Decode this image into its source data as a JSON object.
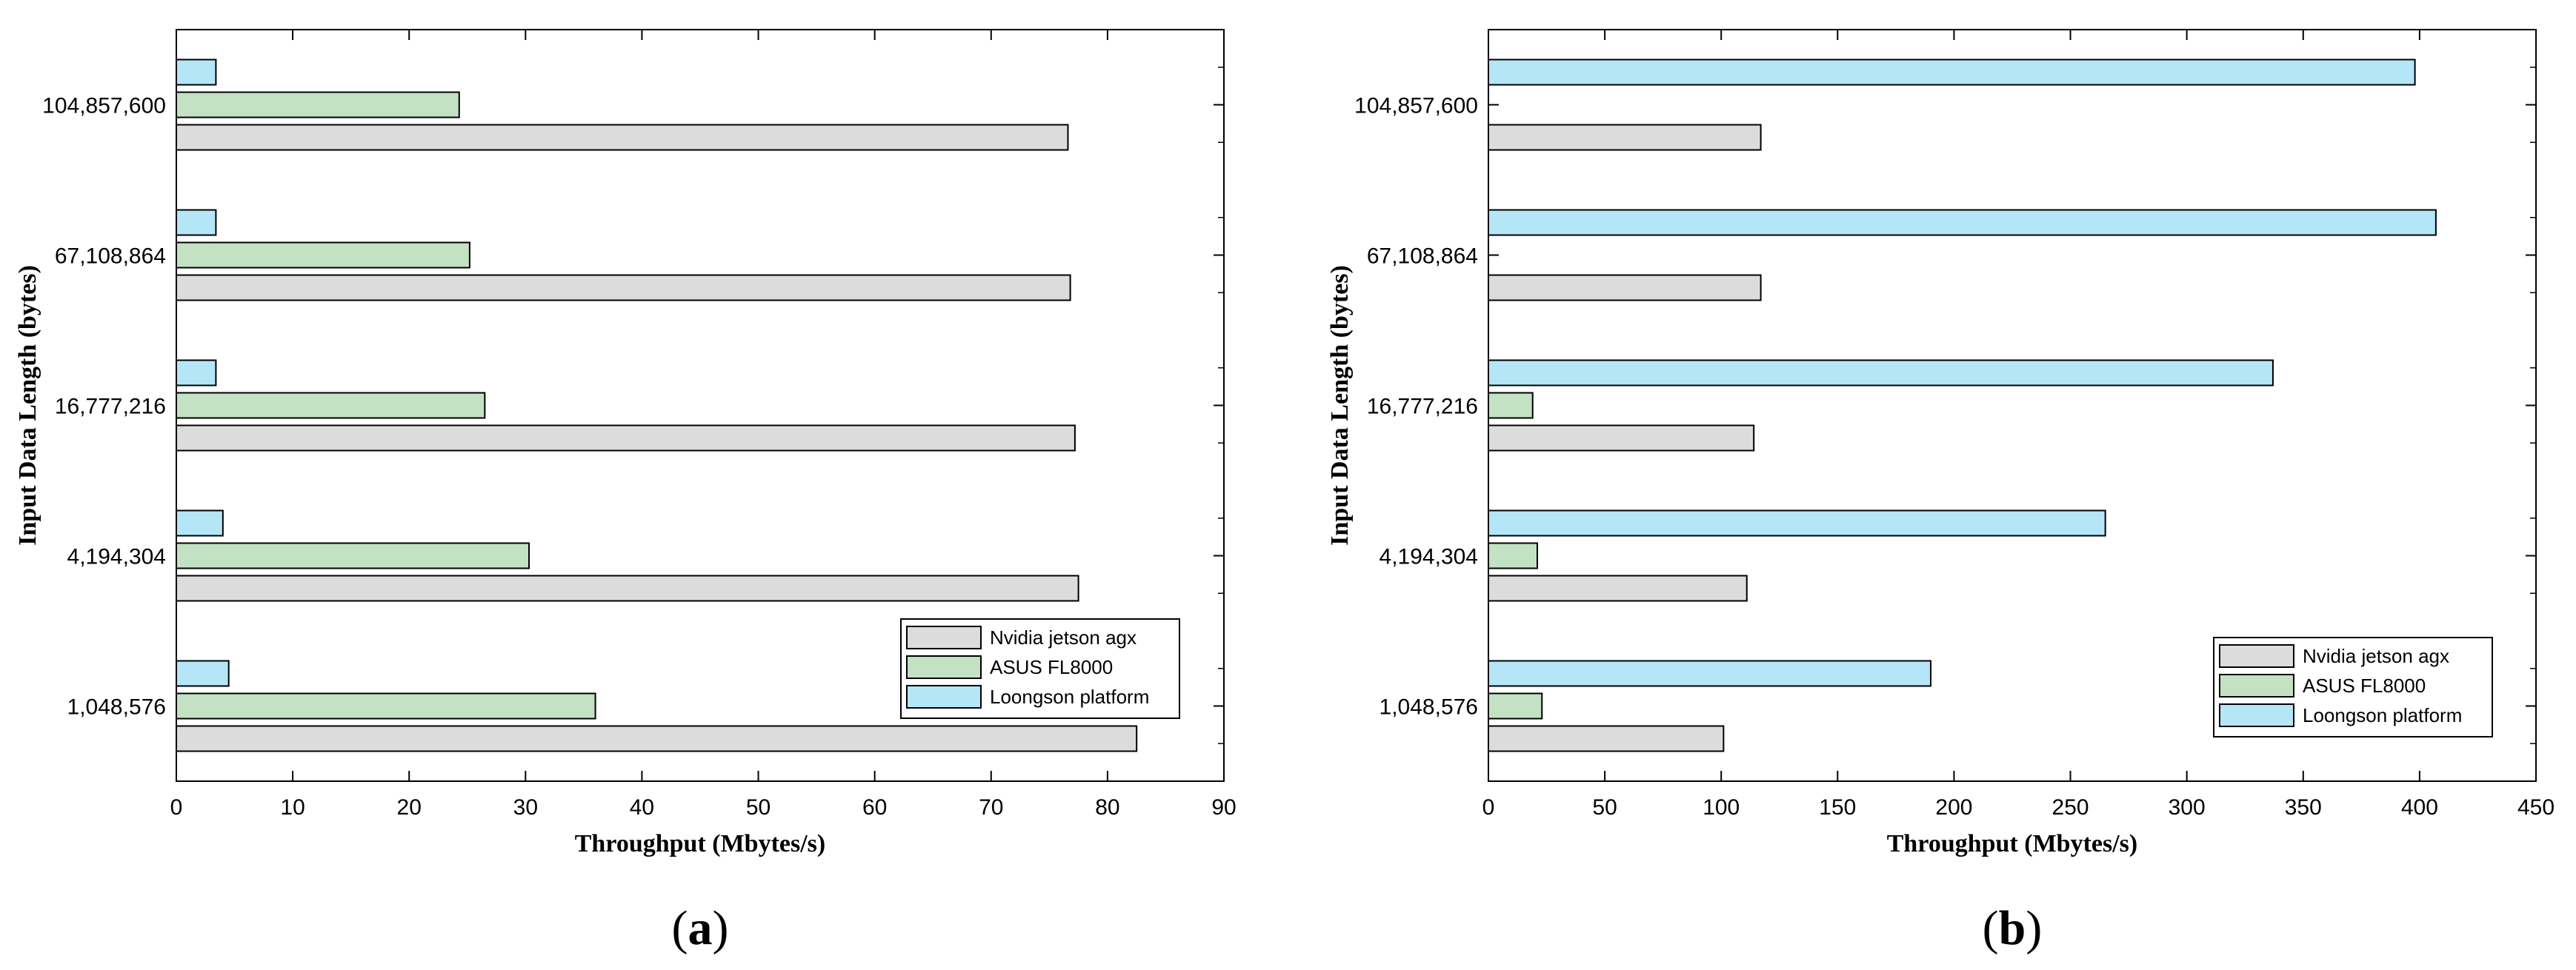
{
  "chart_data": [
    {
      "type": "bar",
      "orientation": "horizontal",
      "panel_label": "(a)",
      "panel_letter": "a",
      "categories": [
        "1,048,576",
        "4,194,304",
        "16,777,216",
        "67,108,864",
        "104,857,600"
      ],
      "series": [
        {
          "name": "Nvidia jetson agx",
          "color": "#dcdcdc",
          "values": [
            82.5,
            77.5,
            77.2,
            76.8,
            76.6
          ]
        },
        {
          "name": "ASUS FL8000",
          "color": "#c3e1c3",
          "values": [
            36.0,
            30.3,
            26.5,
            25.2,
            24.3
          ]
        },
        {
          "name": "Loongson platform",
          "color": "#b5e6f8",
          "values": [
            4.5,
            4.0,
            3.4,
            3.4,
            3.4
          ]
        }
      ],
      "xlabel": "Throughput (Mbytes/s)",
      "ylabel": "Input Data Length (bytes)",
      "xlim": [
        0,
        90
      ],
      "xticks": [
        0,
        10,
        20,
        30,
        40,
        50,
        60,
        70,
        80,
        90
      ],
      "legend_position": "bottom-right",
      "grid": false
    },
    {
      "type": "bar",
      "orientation": "horizontal",
      "panel_label": "(b)",
      "panel_letter": "b",
      "categories": [
        "1,048,576",
        "4,194,304",
        "16,777,216",
        "67,108,864",
        "104,857,600"
      ],
      "series": [
        {
          "name": "Nvidia jetson agx",
          "color": "#dcdcdc",
          "values": [
            101,
            111,
            114,
            117,
            117
          ]
        },
        {
          "name": "ASUS FL8000",
          "color": "#c3e1c3",
          "values": [
            23,
            21,
            19,
            null,
            null
          ]
        },
        {
          "name": "Loongson platform",
          "color": "#b5e6f8",
          "values": [
            190,
            265,
            337,
            407,
            398
          ]
        }
      ],
      "xlabel": "Throughput (Mbytes/s)",
      "ylabel": "Input Data Length (bytes)",
      "xlim": [
        0,
        450
      ],
      "xticks": [
        0,
        50,
        100,
        150,
        200,
        250,
        300,
        350,
        400,
        450
      ],
      "legend_position": "bottom-right",
      "grid": false
    }
  ]
}
